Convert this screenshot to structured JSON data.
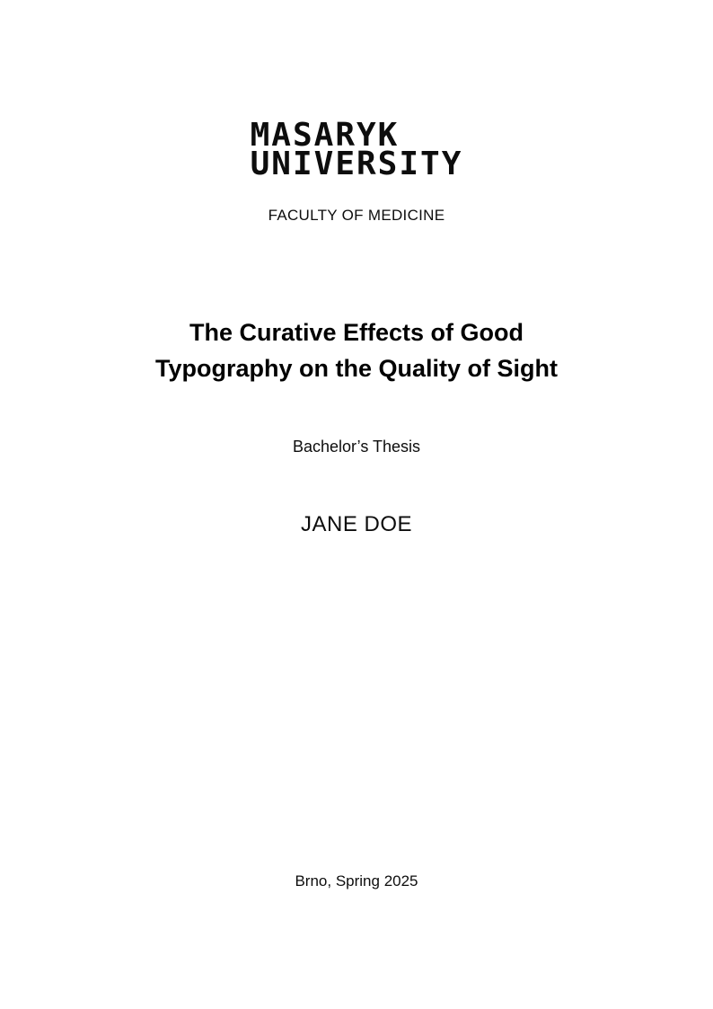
{
  "page": {
    "background": "#ffffff",
    "text_color": "#000000"
  },
  "logo": {
    "line1": "MASARYK",
    "line2": "UNIVERSITY"
  },
  "faculty": {
    "label": "FACULTY OF MEDICINE"
  },
  "title": {
    "line1": "The Curative Effects of Good",
    "line2": "Typography on the Quality of Sight"
  },
  "thesis_type": "Bachelor’s Thesis",
  "author": "JANE DOE",
  "place_date": "Brno, Spring 2025"
}
